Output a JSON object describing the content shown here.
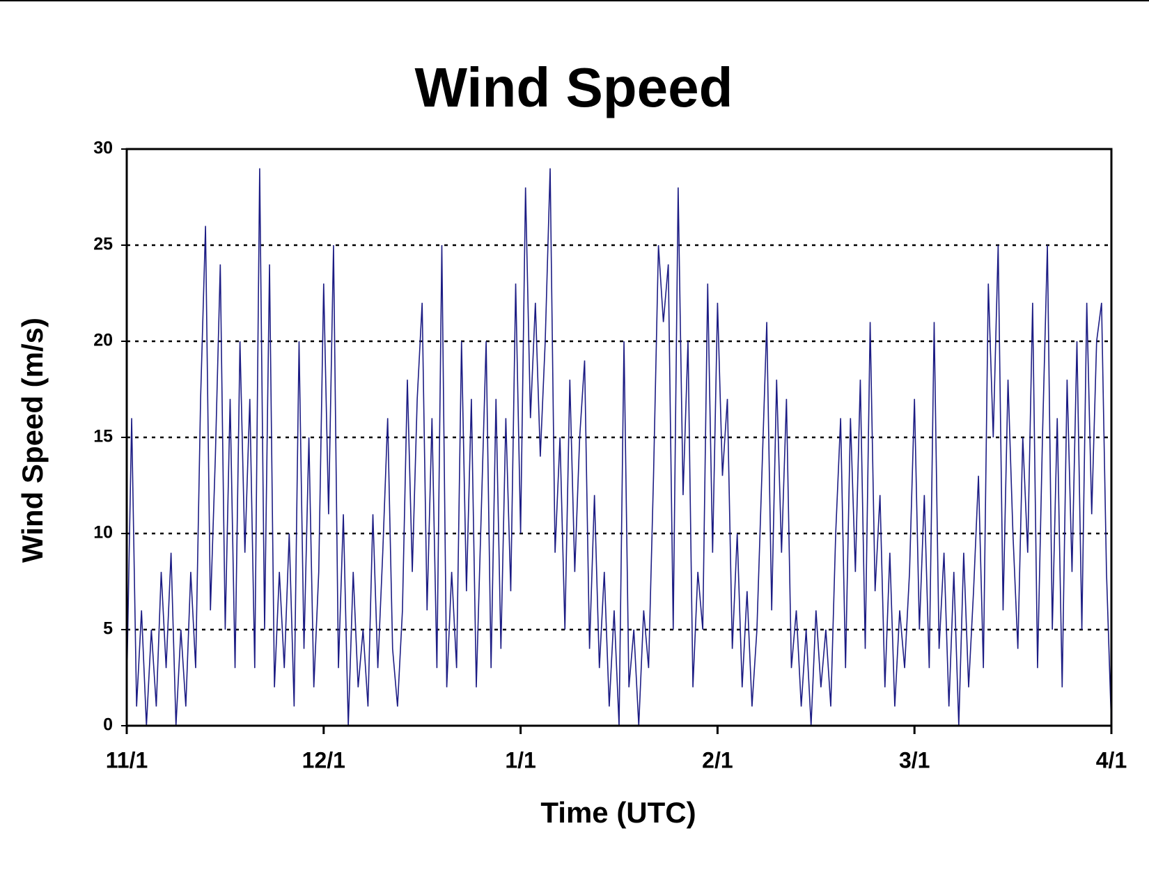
{
  "chart_data": {
    "type": "line",
    "title": "Wind Speed",
    "x_label": "Time (UTC)",
    "y_label": "Wind Speed (m/s)",
    "xlim": [
      0,
      5
    ],
    "xticks": [
      {
        "value": 0,
        "label": "11/1"
      },
      {
        "value": 1,
        "label": "12/1"
      },
      {
        "value": 2,
        "label": "1/1"
      },
      {
        "value": 3,
        "label": "2/1"
      },
      {
        "value": 4,
        "label": "3/1"
      },
      {
        "value": 5,
        "label": "4/1"
      }
    ],
    "ylim": [
      0,
      30
    ],
    "yticks": [
      0,
      5,
      10,
      15,
      20,
      25,
      30
    ],
    "grid": true,
    "x": [
      0,
      0.025,
      0.05,
      0.075,
      0.1,
      0.125,
      0.15,
      0.175,
      0.2,
      0.225,
      0.25,
      0.275,
      0.3,
      0.325,
      0.35,
      0.375,
      0.4,
      0.425,
      0.45,
      0.475,
      0.5,
      0.525,
      0.55,
      0.575,
      0.6,
      0.625,
      0.65,
      0.675,
      0.7,
      0.725,
      0.75,
      0.775,
      0.8,
      0.825,
      0.85,
      0.875,
      0.9,
      0.925,
      0.95,
      0.975,
      1,
      1.025,
      1.05,
      1.075,
      1.1,
      1.125,
      1.15,
      1.175,
      1.2,
      1.225,
      1.25,
      1.275,
      1.3,
      1.325,
      1.35,
      1.375,
      1.4,
      1.425,
      1.45,
      1.475,
      1.5,
      1.525,
      1.55,
      1.575,
      1.6,
      1.625,
      1.65,
      1.675,
      1.7,
      1.725,
      1.75,
      1.775,
      1.8,
      1.825,
      1.85,
      1.875,
      1.9,
      1.925,
      1.95,
      1.975,
      2,
      2.025,
      2.05,
      2.075,
      2.1,
      2.125,
      2.15,
      2.175,
      2.2,
      2.225,
      2.25,
      2.275,
      2.3,
      2.325,
      2.35,
      2.375,
      2.4,
      2.425,
      2.45,
      2.475,
      2.5,
      2.525,
      2.55,
      2.575,
      2.6,
      2.625,
      2.65,
      2.675,
      2.7,
      2.725,
      2.75,
      2.775,
      2.8,
      2.825,
      2.85,
      2.875,
      2.9,
      2.925,
      2.95,
      2.975,
      3,
      3.025,
      3.05,
      3.075,
      3.1,
      3.125,
      3.15,
      3.175,
      3.2,
      3.225,
      3.25,
      3.275,
      3.3,
      3.325,
      3.35,
      3.375,
      3.4,
      3.425,
      3.45,
      3.475,
      3.5,
      3.525,
      3.55,
      3.575,
      3.6,
      3.625,
      3.65,
      3.675,
      3.7,
      3.725,
      3.75,
      3.775,
      3.8,
      3.825,
      3.85,
      3.875,
      3.9,
      3.925,
      3.95,
      3.975,
      4,
      4.025,
      4.05,
      4.075,
      4.1,
      4.125,
      4.15,
      4.175,
      4.2,
      4.225,
      4.25,
      4.275,
      4.3,
      4.325,
      4.35,
      4.375,
      4.4,
      4.425,
      4.45,
      4.475,
      4.5,
      4.525,
      4.55,
      4.575,
      4.6,
      4.625,
      4.65,
      4.675,
      4.7,
      4.725,
      4.75,
      4.775,
      4.8,
      4.825,
      4.85,
      4.875,
      4.9,
      4.925,
      4.95,
      4.975,
      5
    ],
    "series": [
      {
        "color": "#1c1c84",
        "values": [
          2,
          16,
          1,
          6,
          0,
          5,
          1,
          8,
          3,
          9,
          0,
          5,
          1,
          8,
          3,
          17,
          26,
          6,
          14,
          24,
          5,
          17,
          3,
          20,
          9,
          17,
          3,
          29,
          5,
          24,
          2,
          8,
          3,
          10,
          1,
          20,
          4,
          15,
          2,
          8,
          23,
          11,
          25,
          3,
          11,
          0,
          8,
          2,
          5,
          1,
          11,
          3,
          9,
          16,
          4,
          1,
          6,
          18,
          8,
          17,
          22,
          6,
          16,
          3,
          25,
          2,
          8,
          3,
          20,
          7,
          17,
          2,
          11,
          20,
          3,
          17,
          4,
          16,
          7,
          23,
          10,
          28,
          16,
          22,
          14,
          20,
          29,
          9,
          15,
          5,
          18,
          8,
          15,
          19,
          4,
          12,
          3,
          8,
          1,
          6,
          0,
          20,
          2,
          5,
          0,
          6,
          3,
          13,
          25,
          21,
          24,
          5,
          28,
          12,
          20,
          2,
          8,
          5,
          23,
          9,
          22,
          13,
          17,
          4,
          10,
          2,
          7,
          1,
          5,
          13,
          21,
          6,
          18,
          9,
          17,
          3,
          6,
          1,
          5,
          0,
          6,
          2,
          5,
          1,
          10,
          16,
          3,
          16,
          8,
          18,
          4,
          21,
          7,
          12,
          2,
          9,
          1,
          6,
          3,
          8,
          17,
          5,
          12,
          3,
          21,
          4,
          9,
          1,
          8,
          0,
          9,
          2,
          7,
          13,
          3,
          23,
          15,
          25,
          6,
          18,
          10,
          4,
          15,
          9,
          22,
          3,
          15,
          25,
          5,
          16,
          2,
          18,
          8,
          20,
          5,
          22,
          11,
          20,
          22,
          8,
          0
        ]
      }
    ]
  }
}
